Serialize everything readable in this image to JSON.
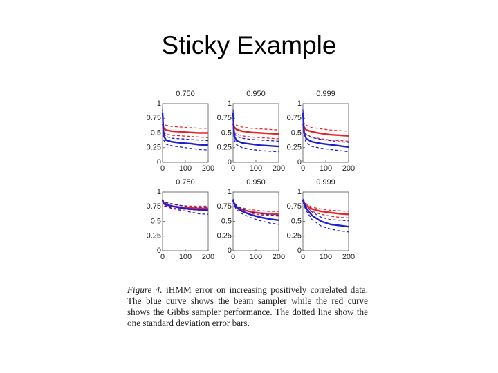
{
  "header": {
    "title": "Sticky Example"
  },
  "chart_data": [
    {
      "type": "line",
      "title": "0.750",
      "x": [
        0,
        5,
        15,
        40,
        80,
        120,
        160,
        200
      ],
      "xlim": [
        0,
        200
      ],
      "xticks": [
        0,
        100,
        200
      ],
      "ylim": [
        0,
        1
      ],
      "yticks": [
        0,
        0.25,
        0.5,
        0.75,
        1
      ],
      "series": [
        {
          "color": "#e8242a",
          "dash": false,
          "values": [
            0.65,
            0.58,
            0.55,
            0.53,
            0.52,
            0.51,
            0.5,
            0.5
          ]
        },
        {
          "color": "#e8242a",
          "dash": true,
          "values": [
            0.7,
            0.66,
            0.63,
            0.61,
            0.6,
            0.59,
            0.58,
            0.58
          ]
        },
        {
          "color": "#e8242a",
          "dash": true,
          "values": [
            0.6,
            0.52,
            0.48,
            0.46,
            0.45,
            0.44,
            0.43,
            0.42
          ]
        },
        {
          "color": "#1f1fcf",
          "dash": false,
          "values": [
            0.85,
            0.45,
            0.38,
            0.35,
            0.33,
            0.32,
            0.3,
            0.29
          ]
        },
        {
          "color": "#1f1fcf",
          "dash": true,
          "values": [
            0.9,
            0.5,
            0.44,
            0.41,
            0.4,
            0.39,
            0.38,
            0.37
          ]
        },
        {
          "color": "#1f1fcf",
          "dash": true,
          "values": [
            0.8,
            0.38,
            0.31,
            0.28,
            0.26,
            0.24,
            0.22,
            0.21
          ]
        }
      ]
    },
    {
      "type": "line",
      "title": "0.950",
      "x": [
        0,
        5,
        15,
        40,
        80,
        120,
        160,
        200
      ],
      "xlim": [
        0,
        200
      ],
      "xticks": [
        0,
        100,
        200
      ],
      "ylim": [
        0,
        1
      ],
      "yticks": [
        0,
        0.25,
        0.5,
        0.75,
        1
      ],
      "series": [
        {
          "color": "#e8242a",
          "dash": false,
          "values": [
            0.65,
            0.6,
            0.56,
            0.53,
            0.51,
            0.5,
            0.49,
            0.48
          ]
        },
        {
          "color": "#e8242a",
          "dash": true,
          "values": [
            0.7,
            0.66,
            0.63,
            0.6,
            0.58,
            0.57,
            0.56,
            0.55
          ]
        },
        {
          "color": "#e8242a",
          "dash": true,
          "values": [
            0.6,
            0.52,
            0.48,
            0.45,
            0.43,
            0.42,
            0.41,
            0.4
          ]
        },
        {
          "color": "#1f1fcf",
          "dash": false,
          "values": [
            0.85,
            0.45,
            0.37,
            0.33,
            0.31,
            0.29,
            0.28,
            0.27
          ]
        },
        {
          "color": "#1f1fcf",
          "dash": true,
          "values": [
            0.9,
            0.5,
            0.44,
            0.41,
            0.39,
            0.38,
            0.37,
            0.36
          ]
        },
        {
          "color": "#1f1fcf",
          "dash": true,
          "values": [
            0.8,
            0.38,
            0.3,
            0.25,
            0.22,
            0.2,
            0.19,
            0.18
          ]
        }
      ]
    },
    {
      "type": "line",
      "title": "0.999",
      "x": [
        0,
        5,
        15,
        40,
        80,
        120,
        160,
        200
      ],
      "xlim": [
        0,
        200
      ],
      "xticks": [
        0,
        100,
        200
      ],
      "ylim": [
        0,
        1
      ],
      "yticks": [
        0,
        0.25,
        0.5,
        0.75,
        1
      ],
      "series": [
        {
          "color": "#e8242a",
          "dash": false,
          "values": [
            0.65,
            0.6,
            0.55,
            0.52,
            0.49,
            0.47,
            0.46,
            0.45
          ]
        },
        {
          "color": "#e8242a",
          "dash": true,
          "values": [
            0.7,
            0.67,
            0.63,
            0.59,
            0.57,
            0.55,
            0.54,
            0.53
          ]
        },
        {
          "color": "#e8242a",
          "dash": true,
          "values": [
            0.6,
            0.52,
            0.47,
            0.43,
            0.4,
            0.38,
            0.37,
            0.36
          ]
        },
        {
          "color": "#1f1fcf",
          "dash": false,
          "values": [
            0.85,
            0.5,
            0.4,
            0.35,
            0.32,
            0.3,
            0.28,
            0.26
          ]
        },
        {
          "color": "#1f1fcf",
          "dash": true,
          "values": [
            0.9,
            0.56,
            0.47,
            0.42,
            0.39,
            0.37,
            0.35,
            0.34
          ]
        },
        {
          "color": "#1f1fcf",
          "dash": true,
          "values": [
            0.8,
            0.43,
            0.33,
            0.27,
            0.24,
            0.22,
            0.2,
            0.18
          ]
        }
      ]
    },
    {
      "type": "line",
      "title": "0.750",
      "x": [
        0,
        5,
        15,
        40,
        80,
        120,
        160,
        200
      ],
      "xlim": [
        0,
        200
      ],
      "xticks": [
        0,
        100,
        200
      ],
      "ylim": [
        0,
        1
      ],
      "yticks": [
        0,
        0.25,
        0.5,
        0.75,
        1
      ],
      "series": [
        {
          "color": "#e8242a",
          "dash": false,
          "values": [
            0.86,
            0.8,
            0.78,
            0.76,
            0.74,
            0.73,
            0.72,
            0.72
          ]
        },
        {
          "color": "#e8242a",
          "dash": true,
          "values": [
            0.88,
            0.83,
            0.81,
            0.79,
            0.77,
            0.76,
            0.76,
            0.76
          ]
        },
        {
          "color": "#e8242a",
          "dash": true,
          "values": [
            0.84,
            0.77,
            0.75,
            0.73,
            0.71,
            0.7,
            0.69,
            0.68
          ]
        },
        {
          "color": "#1f1fcf",
          "dash": false,
          "values": [
            0.86,
            0.81,
            0.79,
            0.76,
            0.73,
            0.71,
            0.7,
            0.69
          ]
        },
        {
          "color": "#1f1fcf",
          "dash": true,
          "values": [
            0.88,
            0.84,
            0.82,
            0.8,
            0.77,
            0.75,
            0.74,
            0.74
          ]
        },
        {
          "color": "#1f1fcf",
          "dash": true,
          "values": [
            0.84,
            0.78,
            0.76,
            0.72,
            0.69,
            0.66,
            0.63,
            0.62
          ]
        }
      ]
    },
    {
      "type": "line",
      "title": "0.950",
      "x": [
        0,
        5,
        15,
        40,
        80,
        120,
        160,
        200
      ],
      "xlim": [
        0,
        200
      ],
      "xticks": [
        0,
        100,
        200
      ],
      "ylim": [
        0,
        1
      ],
      "yticks": [
        0,
        0.25,
        0.5,
        0.75,
        1
      ],
      "series": [
        {
          "color": "#e8242a",
          "dash": false,
          "values": [
            0.86,
            0.8,
            0.75,
            0.7,
            0.66,
            0.64,
            0.63,
            0.62
          ]
        },
        {
          "color": "#e8242a",
          "dash": true,
          "values": [
            0.88,
            0.82,
            0.77,
            0.73,
            0.7,
            0.68,
            0.67,
            0.67
          ]
        },
        {
          "color": "#e8242a",
          "dash": true,
          "values": [
            0.84,
            0.77,
            0.72,
            0.67,
            0.63,
            0.61,
            0.6,
            0.59
          ]
        },
        {
          "color": "#1f1fcf",
          "dash": false,
          "values": [
            0.86,
            0.8,
            0.74,
            0.67,
            0.61,
            0.57,
            0.54,
            0.52
          ]
        },
        {
          "color": "#1f1fcf",
          "dash": true,
          "values": [
            0.88,
            0.82,
            0.77,
            0.71,
            0.66,
            0.63,
            0.61,
            0.6
          ]
        },
        {
          "color": "#1f1fcf",
          "dash": true,
          "values": [
            0.84,
            0.77,
            0.7,
            0.63,
            0.56,
            0.51,
            0.47,
            0.45
          ]
        }
      ]
    },
    {
      "type": "line",
      "title": "0.999",
      "x": [
        0,
        5,
        15,
        40,
        80,
        120,
        160,
        200
      ],
      "xlim": [
        0,
        200
      ],
      "xticks": [
        0,
        100,
        200
      ],
      "ylim": [
        0,
        1
      ],
      "yticks": [
        0,
        0.25,
        0.5,
        0.75,
        1
      ],
      "series": [
        {
          "color": "#e8242a",
          "dash": false,
          "values": [
            0.86,
            0.82,
            0.77,
            0.71,
            0.67,
            0.65,
            0.63,
            0.62
          ]
        },
        {
          "color": "#e8242a",
          "dash": true,
          "values": [
            0.88,
            0.85,
            0.8,
            0.74,
            0.71,
            0.69,
            0.68,
            0.67
          ]
        },
        {
          "color": "#e8242a",
          "dash": true,
          "values": [
            0.84,
            0.8,
            0.74,
            0.67,
            0.62,
            0.59,
            0.57,
            0.56
          ]
        },
        {
          "color": "#1f1fcf",
          "dash": false,
          "values": [
            0.86,
            0.8,
            0.72,
            0.6,
            0.5,
            0.45,
            0.43,
            0.41
          ]
        },
        {
          "color": "#1f1fcf",
          "dash": true,
          "values": [
            0.88,
            0.83,
            0.76,
            0.66,
            0.57,
            0.53,
            0.52,
            0.51
          ]
        },
        {
          "color": "#1f1fcf",
          "dash": true,
          "values": [
            0.84,
            0.77,
            0.68,
            0.53,
            0.42,
            0.37,
            0.34,
            0.32
          ]
        }
      ]
    }
  ],
  "caption": {
    "label": "Figure 4.",
    "text": "iHMM error on increasing positively correlated data. The blue curve shows the beam sampler while the red curve shows the Gibbs sampler performance. The dotted line show the one standard deviation error bars."
  }
}
